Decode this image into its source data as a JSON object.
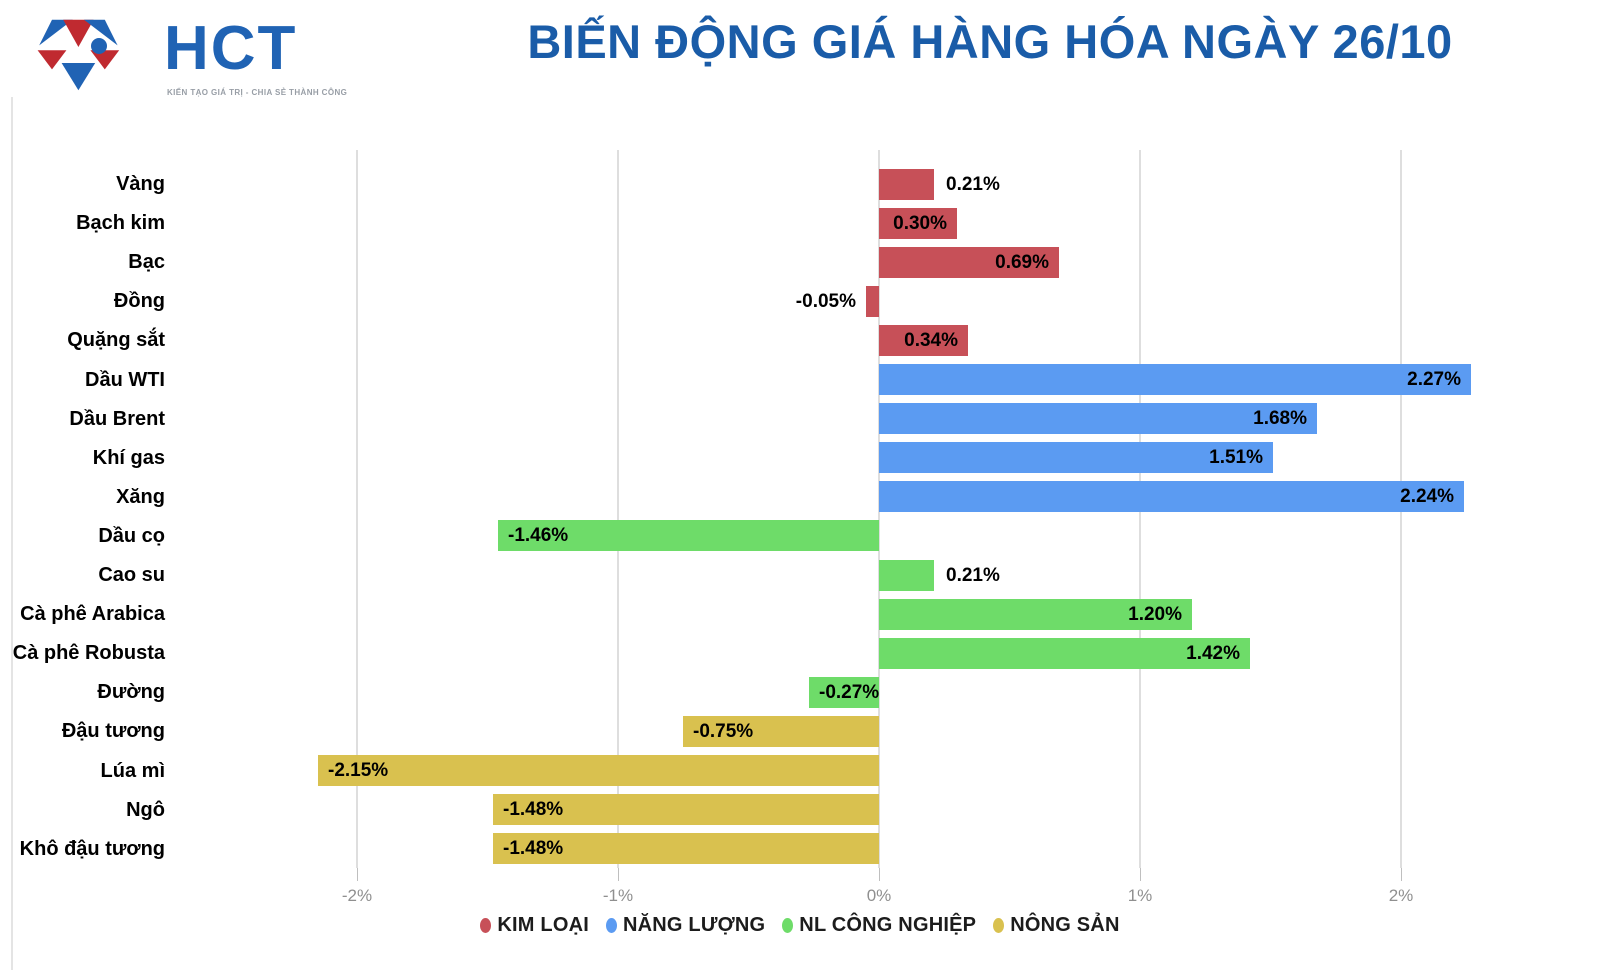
{
  "header": {
    "logo": {
      "text": "HCT",
      "tagline": "KIẾN TẠO GIÁ TRỊ - CHIA SẺ THÀNH CÔNG"
    },
    "title": "BIẾN ĐỘNG GIÁ HÀNG HÓA NGÀY 26/10"
  },
  "colors": {
    "metal": "#c75058",
    "energy": "#5b9bf2",
    "industrial": "#6edc69",
    "agri": "#d9c14f",
    "title": "#1a5ca8",
    "logo_blue": "#2063b4",
    "logo_red": "#c02a30",
    "grid": "#dedede",
    "axis_text": "#8f8f8f"
  },
  "chart_data": {
    "type": "bar",
    "orientation": "horizontal",
    "title": "BIẾN ĐỘNG GIÁ HÀNG HÓA NGÀY 26/10",
    "xlabel": "",
    "ylabel": "",
    "grid": true,
    "legend_position": "bottom",
    "xlim": [
      -2.75,
      2.77
    ],
    "x_ticks": [
      "-2%",
      "-1%",
      "0%",
      "1%",
      "2%"
    ],
    "x_tick_values": [
      -2,
      -1,
      0,
      1,
      2
    ],
    "categories": [
      "Vàng",
      "Bạch kim",
      "Bạc",
      "Đồng",
      "Quặng sắt",
      "Dầu WTI",
      "Dầu Brent",
      "Khí gas",
      "Xăng",
      "Dầu cọ",
      "Cao su",
      "Cà phê Arabica",
      "Cà phê Robusta",
      "Đường",
      "Đậu tương",
      "Lúa mì",
      "Ngô",
      "Khô đậu tương"
    ],
    "values": [
      0.21,
      0.3,
      0.69,
      -0.05,
      0.34,
      2.27,
      1.68,
      1.51,
      2.24,
      -1.46,
      0.21,
      1.2,
      1.42,
      -0.27,
      -0.75,
      -2.15,
      -1.48,
      -1.48
    ],
    "labels": [
      "0.21%",
      "0.30%",
      "0.69%",
      "-0.05%",
      "0.34%",
      "2.27%",
      "1.68%",
      "1.51%",
      "2.24%",
      "-1.46%",
      "0.21%",
      "1.20%",
      "1.42%",
      "-0.27%",
      "-0.75%",
      "-2.15%",
      "-1.48%",
      "-1.48%"
    ],
    "groups": [
      "metal",
      "metal",
      "metal",
      "metal",
      "metal",
      "energy",
      "energy",
      "energy",
      "energy",
      "industrial",
      "industrial",
      "industrial",
      "industrial",
      "industrial",
      "agri",
      "agri",
      "agri",
      "agri"
    ],
    "legend": [
      {
        "label": "KIM LOẠI",
        "group": "metal"
      },
      {
        "label": "NĂNG LƯỢNG",
        "group": "energy"
      },
      {
        "label": "NL CÔNG NGHIỆP",
        "group": "industrial"
      },
      {
        "label": "NÔNG SẢN",
        "group": "agri"
      }
    ]
  }
}
